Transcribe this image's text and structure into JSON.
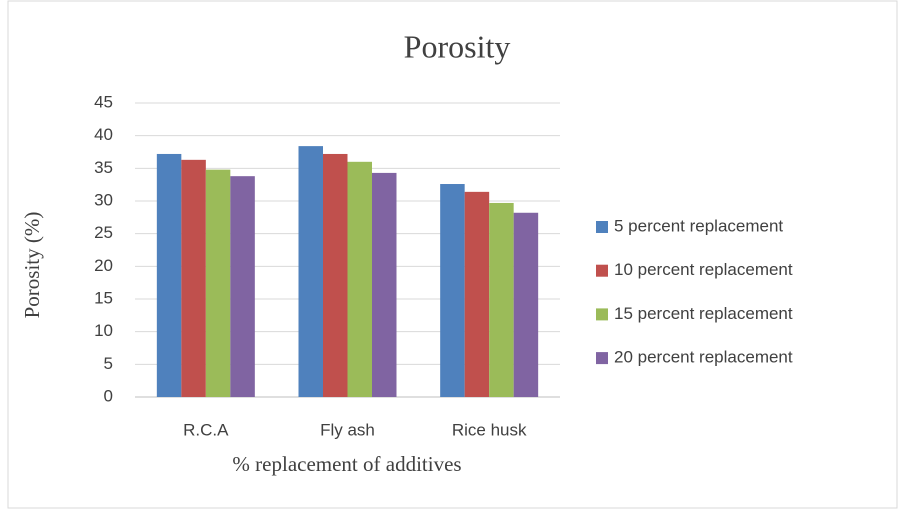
{
  "chart_data": {
    "type": "bar",
    "title": "Porosity",
    "x_label": "% replacement of additives",
    "y_label": "Porosity (%)",
    "categories": [
      "R.C.A",
      "Fly ash",
      "Rice husk"
    ],
    "series": [
      {
        "name": "5 percent replacement",
        "color": "#4f81bd",
        "values": [
          37.2,
          38.4,
          32.6
        ]
      },
      {
        "name": "10 percent replacement",
        "color": "#c0504d",
        "values": [
          36.3,
          37.2,
          31.4
        ]
      },
      {
        "name": "15 percent replacement",
        "color": "#9bbb59",
        "values": [
          34.8,
          36.0,
          29.7
        ]
      },
      {
        "name": "20 percent replacement",
        "color": "#8064a2",
        "values": [
          33.8,
          34.3,
          28.2
        ]
      }
    ],
    "ylim": [
      0,
      45
    ],
    "yticks": [
      0,
      5,
      10,
      15,
      20,
      25,
      30,
      35,
      40,
      45
    ],
    "grid": true,
    "legend": "right"
  }
}
